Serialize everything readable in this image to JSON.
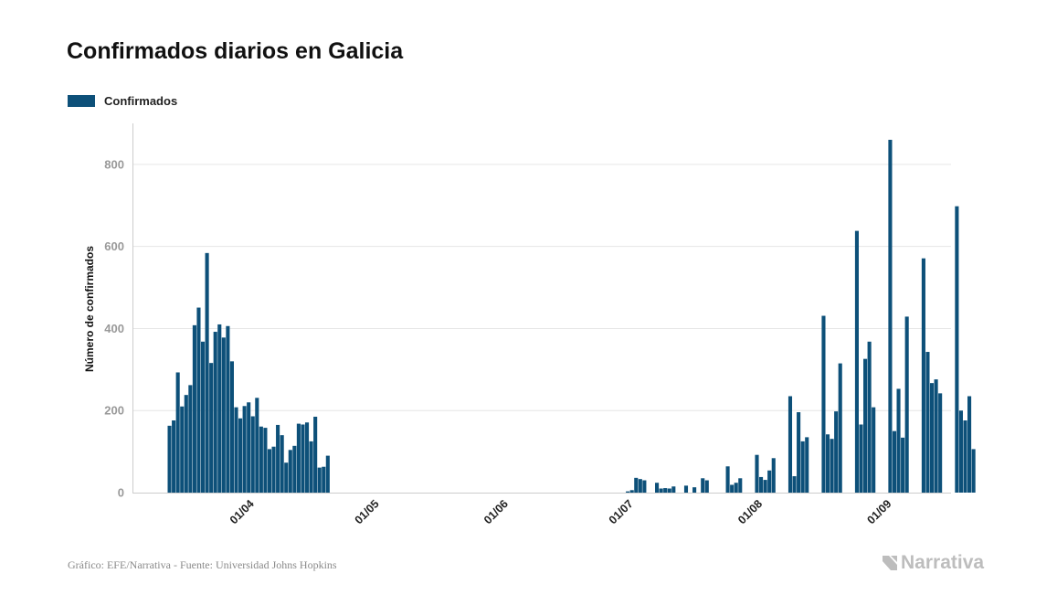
{
  "title": "Confirmados diarios en Galicia",
  "legend": {
    "label": "Confirmados"
  },
  "footer": "Gráfico: EFE/Narrativa - Fuente: Universidad Johns Hopkins",
  "logo": {
    "text": "Narrativa"
  },
  "colors": {
    "bar": "#0d5079",
    "grid": "#e6e6e6",
    "axis": "#cccccc"
  },
  "chart_data": {
    "type": "bar",
    "title": "Confirmados diarios en Galicia",
    "xlabel": "",
    "ylabel": "Número de confirmados",
    "ylim": [
      0,
      900
    ],
    "yticks": [
      0,
      200,
      400,
      600,
      800
    ],
    "x_start_date": "2020-03-14",
    "xticks": [
      {
        "label": "01/04",
        "day_index": 18
      },
      {
        "label": "01/05",
        "day_index": 48
      },
      {
        "label": "01/06",
        "day_index": 79
      },
      {
        "label": "01/07",
        "day_index": 109
      },
      {
        "label": "01/08",
        "day_index": 140
      },
      {
        "label": "01/09",
        "day_index": 171
      }
    ],
    "series": [
      {
        "name": "Confirmados",
        "values": [
          163,
          176,
          293,
          210,
          238,
          262,
          408,
          451,
          368,
          584,
          316,
          392,
          410,
          378,
          406,
          320,
          208,
          181,
          211,
          220,
          186,
          231,
          161,
          158,
          106,
          112,
          165,
          140,
          73,
          104,
          114,
          168,
          166,
          171,
          125,
          185,
          61,
          63,
          90,
          0,
          0,
          0,
          0,
          0,
          0,
          0,
          0,
          0,
          0,
          0,
          0,
          0,
          0,
          0,
          0,
          0,
          0,
          0,
          0,
          0,
          0,
          0,
          0,
          0,
          0,
          0,
          0,
          0,
          0,
          0,
          0,
          0,
          0,
          0,
          0,
          0,
          0,
          0,
          0,
          0,
          0,
          0,
          0,
          0,
          0,
          0,
          0,
          0,
          0,
          0,
          0,
          0,
          0,
          0,
          0,
          0,
          0,
          0,
          0,
          0,
          0,
          0,
          0,
          0,
          0,
          0,
          0,
          0,
          0,
          0,
          3,
          6,
          36,
          33,
          30,
          0,
          0,
          24,
          10,
          11,
          10,
          15,
          0,
          0,
          17,
          0,
          13,
          0,
          35,
          30,
          0,
          0,
          0,
          0,
          64,
          19,
          24,
          35,
          0,
          0,
          0,
          92,
          38,
          31,
          54,
          84,
          0,
          0,
          0,
          235,
          40,
          196,
          125,
          135,
          0,
          0,
          0,
          431,
          142,
          131,
          198,
          315,
          0,
          0,
          0,
          638,
          166,
          326,
          368,
          208,
          0,
          0,
          0,
          860,
          150,
          253,
          134,
          429,
          0,
          0,
          0,
          571,
          343,
          267,
          276,
          242,
          0,
          0,
          0,
          698,
          200,
          176,
          235,
          106,
          0,
          0,
          0
        ]
      }
    ]
  }
}
